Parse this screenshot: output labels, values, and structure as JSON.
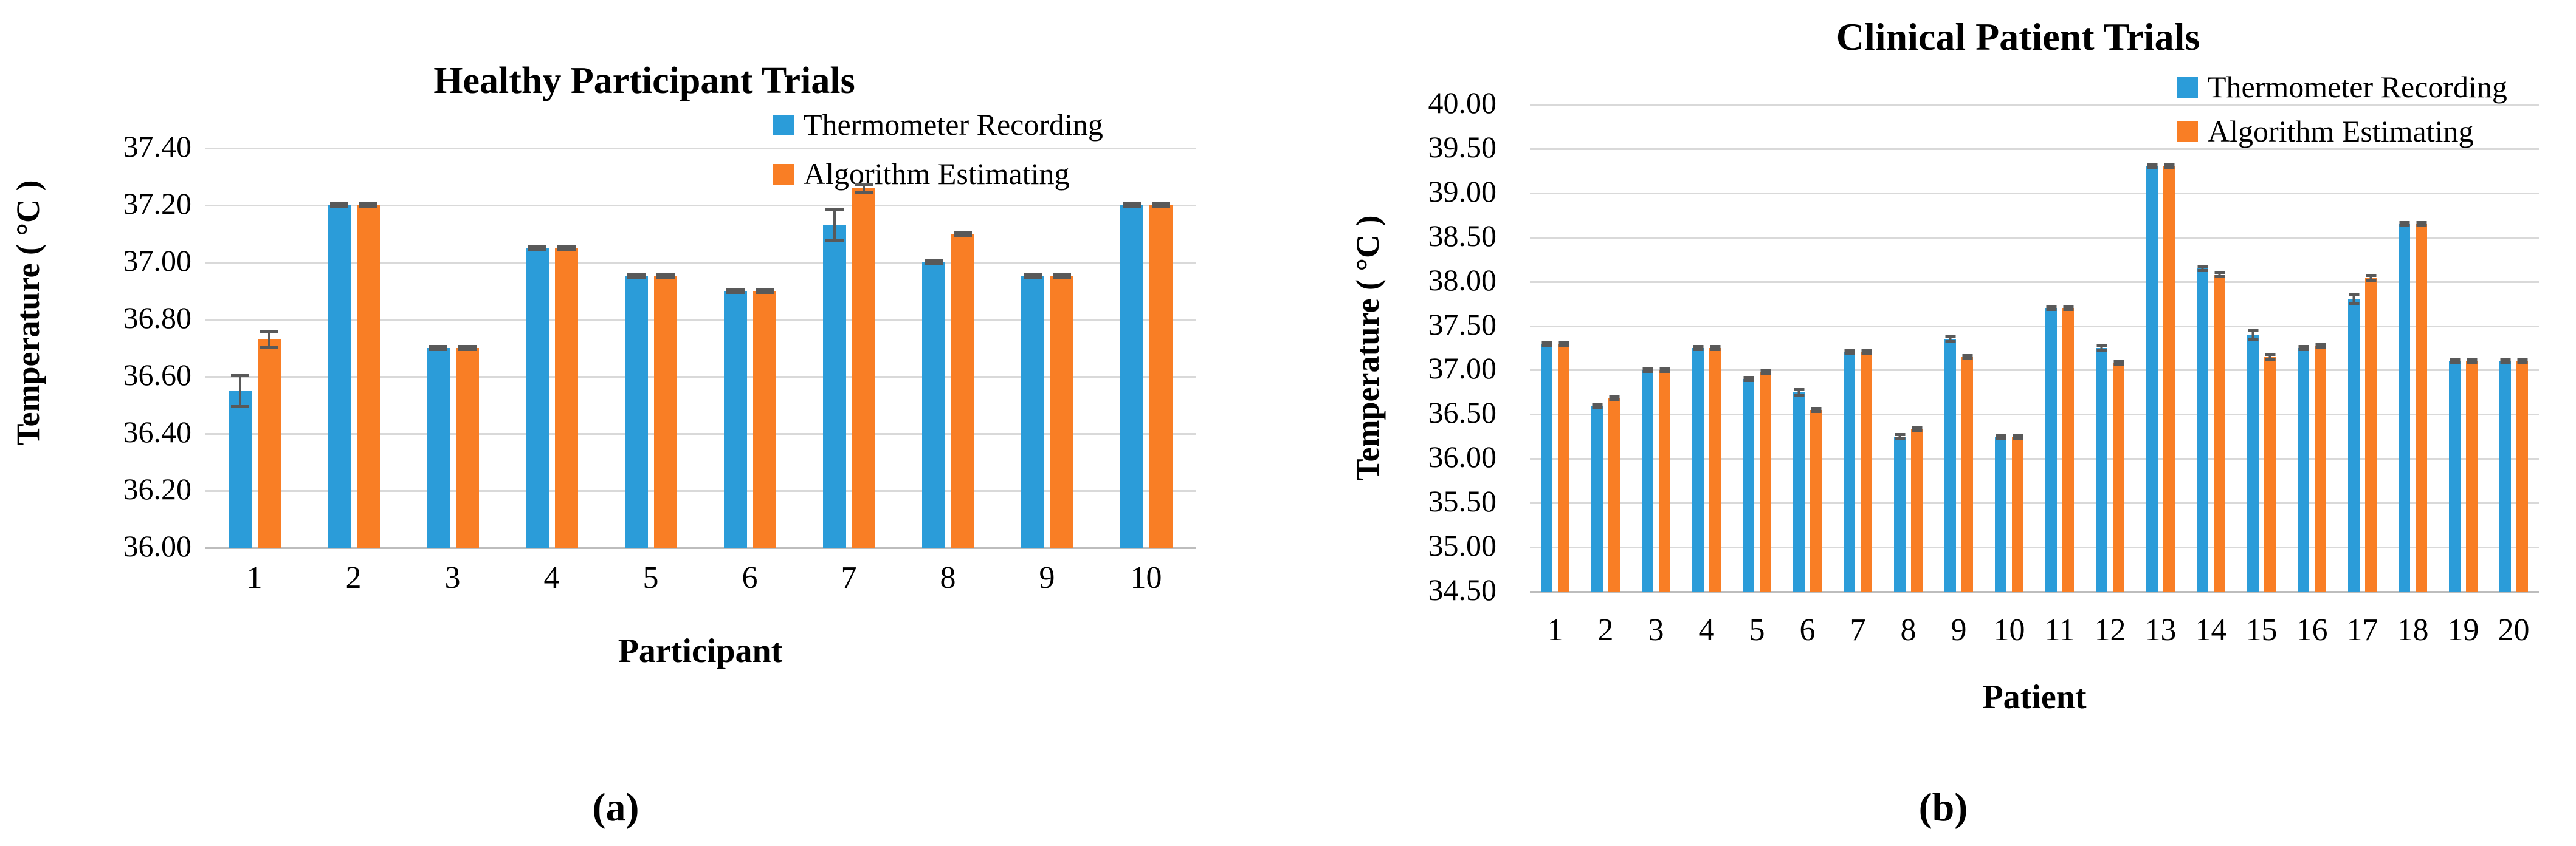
{
  "page": {
    "background": "#ffffff"
  },
  "colors": {
    "thermometer": "#2B9CD9",
    "algorithm": "#F97E25",
    "error_bar": "#595959",
    "gridline": "#D9D9D9",
    "axis_line": "#BDBDBD",
    "text": "#000000"
  },
  "chart_data": [
    {
      "id": "a",
      "type": "bar",
      "panel_label": "(a)",
      "title": "Healthy Participant Trials",
      "xlabel": "Participant",
      "ylabel": "Temperature ( °C )",
      "legend_position": "top-right",
      "grid": "horizontal",
      "ylim": [
        36.0,
        37.4
      ],
      "ytick_step": 0.2,
      "ytick_labels": [
        "37.40",
        "37.20",
        "37.00",
        "36.80",
        "36.60",
        "36.40",
        "36.20",
        "36.00"
      ],
      "categories": [
        "1",
        "2",
        "3",
        "4",
        "5",
        "6",
        "7",
        "8",
        "9",
        "10"
      ],
      "series": [
        {
          "name": "Thermometer Recording",
          "color_key": "thermometer",
          "values": [
            36.55,
            37.2,
            36.7,
            37.05,
            36.95,
            36.9,
            37.13,
            37.0,
            36.95,
            37.2
          ],
          "errors": [
            0.06,
            0.01,
            0.01,
            0.01,
            0.01,
            0.01,
            0.06,
            0.01,
            0.01,
            0.01
          ]
        },
        {
          "name": "Algorithm Estimating",
          "color_key": "algorithm",
          "values": [
            36.73,
            37.2,
            36.7,
            37.05,
            36.95,
            36.9,
            37.26,
            37.1,
            36.95,
            37.2
          ],
          "errors": [
            0.035,
            0.01,
            0.01,
            0.01,
            0.01,
            0.01,
            0.02,
            0.01,
            0.01,
            0.01
          ]
        }
      ]
    },
    {
      "id": "b",
      "type": "bar",
      "panel_label": "(b)",
      "title": "Clinical Patient Trials",
      "xlabel": "Patient",
      "ylabel": "Temperature ( °C )",
      "legend_position": "top-right",
      "grid": "horizontal",
      "ylim": [
        34.5,
        40.0
      ],
      "ytick_step": 0.5,
      "ytick_labels": [
        "40.00",
        "39.50",
        "39.00",
        "38.50",
        "38.00",
        "37.50",
        "37.00",
        "36.50",
        "36.00",
        "35.50",
        "35.00",
        "34.50"
      ],
      "categories": [
        "1",
        "2",
        "3",
        "4",
        "5",
        "6",
        "7",
        "8",
        "9",
        "10",
        "11",
        "12",
        "13",
        "14",
        "15",
        "16",
        "17",
        "18",
        "19",
        "20"
      ],
      "series": [
        {
          "name": "Thermometer Recording",
          "color_key": "thermometer",
          "values": [
            37.3,
            36.6,
            37.0,
            37.25,
            36.9,
            36.75,
            37.2,
            36.25,
            37.35,
            36.25,
            37.7,
            37.25,
            39.3,
            38.15,
            37.4,
            37.25,
            37.8,
            38.65,
            37.1,
            37.1
          ],
          "errors": [
            0.01,
            0.01,
            0.01,
            0.01,
            0.01,
            0.05,
            0.01,
            0.04,
            0.05,
            0.01,
            0.01,
            0.04,
            0.01,
            0.04,
            0.07,
            0.01,
            0.07,
            0.01,
            0.01,
            0.01
          ]
        },
        {
          "name": "Algorithm Estimating",
          "color_key": "algorithm",
          "values": [
            37.3,
            36.68,
            37.0,
            37.25,
            36.98,
            36.55,
            37.2,
            36.33,
            37.15,
            36.25,
            37.7,
            37.08,
            39.3,
            38.08,
            37.15,
            37.27,
            38.04,
            38.65,
            37.1,
            37.1
          ],
          "errors": [
            0.01,
            0.01,
            0.01,
            0.01,
            0.01,
            0.01,
            0.01,
            0.01,
            0.01,
            0.01,
            0.01,
            0.03,
            0.01,
            0.04,
            0.05,
            0.01,
            0.05,
            0.01,
            0.01,
            0.01
          ]
        }
      ]
    }
  ]
}
